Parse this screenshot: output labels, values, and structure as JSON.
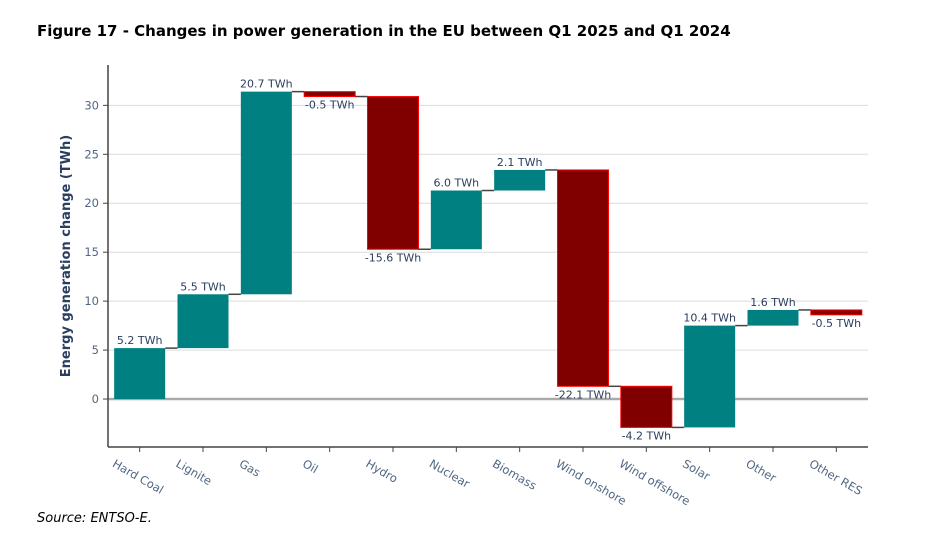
{
  "title": "Figure 17 - Changes in power generation in the EU between Q1 2025 and Q1 2024",
  "source": "Source: ENTSO-E.",
  "chart_data": {
    "type": "waterfall",
    "title": "Figure 17 - Changes in power generation in the EU between Q1 2025 and Q1 2024",
    "xlabel": "",
    "ylabel": "Energy generation change (TWh)",
    "categories": [
      "Hard Coal",
      "Lignite",
      "Gas",
      "Oil",
      "Hydro",
      "Nuclear",
      "Biomass",
      "Wind onshore",
      "Wind offshore",
      "Solar",
      "Other",
      "Other RES"
    ],
    "values": [
      5.2,
      5.5,
      20.7,
      -0.5,
      -15.6,
      6.0,
      2.1,
      -22.1,
      -4.2,
      10.4,
      1.6,
      -0.5
    ],
    "data_labels": [
      "5.2 TWh",
      "5.5 TWh",
      "20.7 TWh",
      "-0.5 TWh",
      "-15.6 TWh",
      "6.0 TWh",
      "2.1 TWh",
      "-22.1 TWh",
      "-4.2 TWh",
      "10.4 TWh",
      "1.6 TWh",
      "-0.5 TWh"
    ],
    "ylim": [
      -4.9,
      33.1
    ],
    "yticks": [
      0,
      5,
      10,
      15,
      20,
      25,
      30
    ],
    "grid": true,
    "colors": {
      "increase": "#008080",
      "decrease": "#800000",
      "decrease_border": "#ff0000",
      "connector": "#444444",
      "zero_line": "#aaaaaa"
    }
  }
}
